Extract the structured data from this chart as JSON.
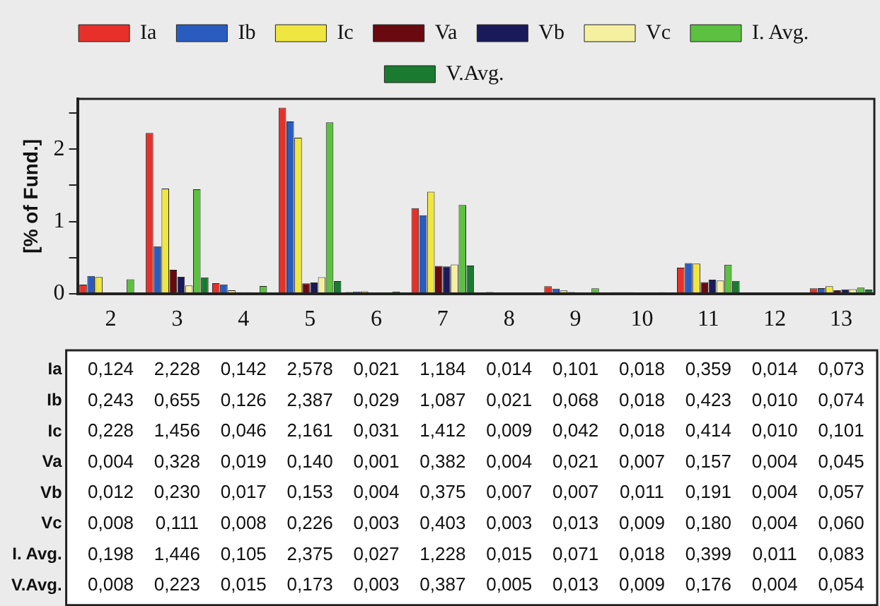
{
  "chart_data": {
    "type": "bar",
    "ylabel": "[% of Fund.]",
    "categories": [
      "2",
      "3",
      "4",
      "5",
      "6",
      "7",
      "8",
      "9",
      "10",
      "11",
      "12",
      "13"
    ],
    "ylim": [
      0,
      2.7
    ],
    "yticks": [
      0,
      {
        "value": 0.5,
        "label": null
      },
      1,
      {
        "value": 1.5,
        "label": null
      },
      2,
      {
        "value": 2.5,
        "label": null
      }
    ],
    "grid": false,
    "legend": "top",
    "series": [
      {
        "name": "Ia",
        "color": "#e8302a",
        "values": [
          0.124,
          2.228,
          0.142,
          2.578,
          0.021,
          1.184,
          0.014,
          0.101,
          0.018,
          0.359,
          0.014,
          0.073
        ],
        "value_labels": [
          "0,124",
          "2,228",
          "0,142",
          "2,578",
          "0,021",
          "1,184",
          "0,014",
          "0,101",
          "0,018",
          "0,359",
          "0,014",
          "0,073"
        ]
      },
      {
        "name": "Ib",
        "color": "#2a5cc0",
        "values": [
          0.243,
          0.655,
          0.126,
          2.387,
          0.029,
          1.087,
          0.021,
          0.068,
          0.018,
          0.423,
          0.01,
          0.074
        ],
        "value_labels": [
          "0,243",
          "0,655",
          "0,126",
          "2,387",
          "0,029",
          "1,087",
          "0,021",
          "0,068",
          "0,018",
          "0,423",
          "0,010",
          "0,074"
        ]
      },
      {
        "name": "Ic",
        "color": "#f0e640",
        "values": [
          0.228,
          1.456,
          0.046,
          2.161,
          0.031,
          1.412,
          0.009,
          0.042,
          0.018,
          0.414,
          0.01,
          0.101
        ],
        "value_labels": [
          "0,228",
          "1,456",
          "0,046",
          "2,161",
          "0,031",
          "1,412",
          "0,009",
          "0,042",
          "0,018",
          "0,414",
          "0,010",
          "0,101"
        ]
      },
      {
        "name": "Va",
        "color": "#6a0a10",
        "values": [
          0.004,
          0.328,
          0.019,
          0.14,
          0.001,
          0.382,
          0.004,
          0.021,
          0.007,
          0.157,
          0.004,
          0.045
        ],
        "value_labels": [
          "0,004",
          "0,328",
          "0,019",
          "0,140",
          "0,001",
          "0,382",
          "0,004",
          "0,021",
          "0,007",
          "0,157",
          "0,004",
          "0,045"
        ]
      },
      {
        "name": "Vb",
        "color": "#1a1a5a",
        "values": [
          0.012,
          0.23,
          0.017,
          0.153,
          0.004,
          0.375,
          0.007,
          0.007,
          0.011,
          0.191,
          0.004,
          0.057
        ],
        "value_labels": [
          "0,012",
          "0,230",
          "0,017",
          "0,153",
          "0,004",
          "0,375",
          "0,007",
          "0,007",
          "0,011",
          "0,191",
          "0,004",
          "0,057"
        ]
      },
      {
        "name": "Vc",
        "color": "#f4f0a0",
        "values": [
          0.008,
          0.111,
          0.008,
          0.226,
          0.003,
          0.403,
          0.003,
          0.013,
          0.009,
          0.18,
          0.004,
          0.06
        ],
        "value_labels": [
          "0,008",
          "0,111",
          "0,008",
          "0,226",
          "0,003",
          "0,403",
          "0,003",
          "0,013",
          "0,009",
          "0,180",
          "0,004",
          "0,060"
        ]
      },
      {
        "name": "I. Avg.",
        "color": "#5cc040",
        "values": [
          0.198,
          1.446,
          0.105,
          2.375,
          0.027,
          1.228,
          0.015,
          0.071,
          0.018,
          0.399,
          0.011,
          0.083
        ],
        "value_labels": [
          "0,198",
          "1,446",
          "0,105",
          "2,375",
          "0,027",
          "1,228",
          "0,015",
          "0,071",
          "0,018",
          "0,399",
          "0,011",
          "0,083"
        ]
      },
      {
        "name": "V.Avg.",
        "color": "#1a7a30",
        "values": [
          0.008,
          0.223,
          0.015,
          0.173,
          0.003,
          0.387,
          0.005,
          0.013,
          0.009,
          0.176,
          0.004,
          0.054
        ],
        "value_labels": [
          "0,008",
          "0,223",
          "0,015",
          "0,173",
          "0,003",
          "0,387",
          "0,005",
          "0,013",
          "0,009",
          "0,176",
          "0,004",
          "0,054"
        ]
      }
    ]
  }
}
